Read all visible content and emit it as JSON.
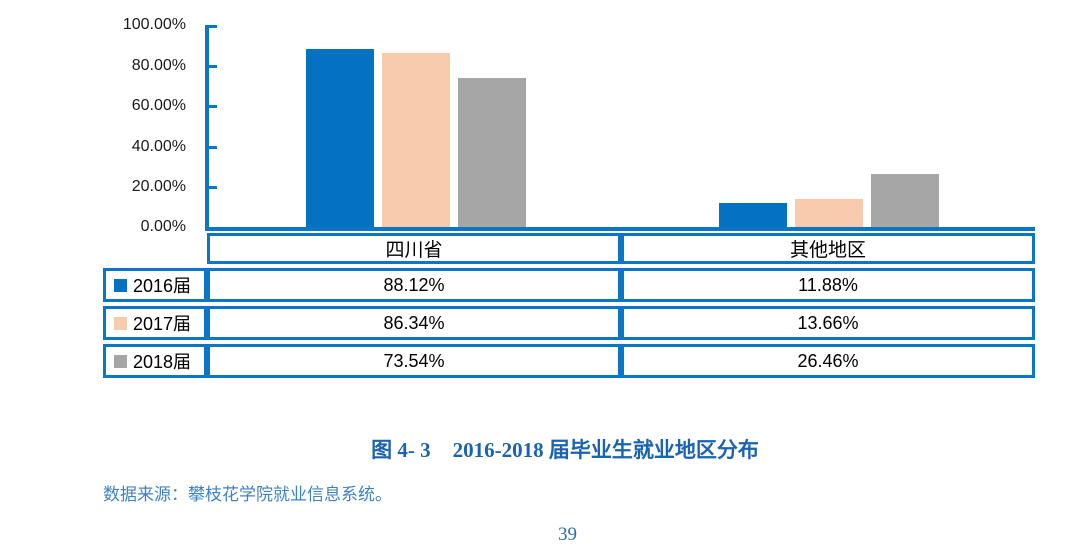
{
  "chart_data": {
    "type": "bar",
    "categories": [
      "四川省",
      "其他地区"
    ],
    "series": [
      {
        "name": "2016届",
        "color": "#0572C1",
        "values": [
          88.12,
          11.88
        ]
      },
      {
        "name": "2017届",
        "color": "#F8CBAD",
        "values": [
          86.34,
          13.66
        ]
      },
      {
        "name": "2018届",
        "color": "#A6A6A6",
        "values": [
          73.54,
          26.46
        ]
      }
    ],
    "title": "图 4- 3　2016-2018 届毕业生就业地区分布",
    "xlabel": "",
    "ylabel": "",
    "ylim": [
      0,
      100
    ],
    "grid": false,
    "legend_position": "data-table-left",
    "y_ticks": [
      "100.00%",
      "80.00%",
      "60.00%",
      "40.00%",
      "20.00%",
      "0.00%"
    ]
  },
  "table": {
    "header": [
      "四川省",
      "其他地区"
    ],
    "rows": [
      {
        "legend": "2016届",
        "values": [
          "88.12%",
          "11.88%"
        ]
      },
      {
        "legend": "2017届",
        "values": [
          "86.34%",
          "13.66%"
        ]
      },
      {
        "legend": "2018届",
        "values": [
          "73.54%",
          "26.46%"
        ]
      }
    ]
  },
  "caption": {
    "label": "图 4- 3",
    "title": "2016-2018 届毕业生就业地区分布"
  },
  "source_line": "数据来源：攀枝花学院就业信息系统。",
  "page_number": "39",
  "colors": {
    "bar_2016_blue": "#0572C1",
    "bar_2017_peach": "#F8CBAD",
    "bar_2018_gray": "#A6A6A6",
    "axis_and_border_blue": "#0B76C8",
    "caption_blue": "#1A63B0",
    "source_text_blue": "#3E82C6",
    "page_number_blue": "#2B6CB5",
    "axis_label_color": "#1A1A1A"
  }
}
